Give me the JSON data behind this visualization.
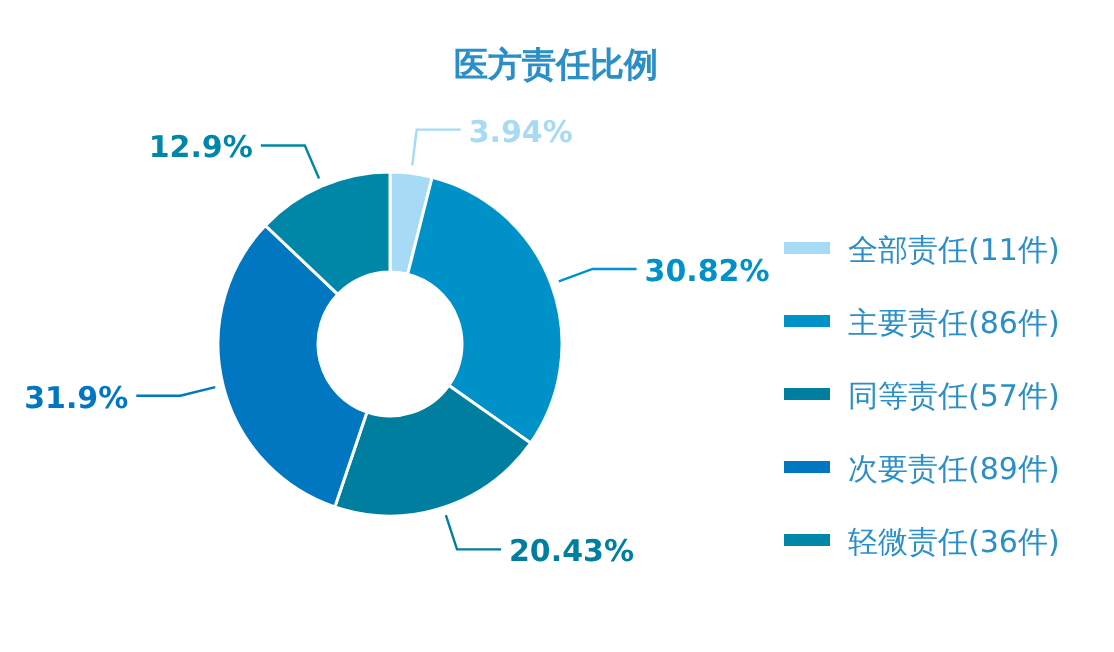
{
  "chart_data": {
    "type": "donut",
    "title": "医方责任比例",
    "categories": [
      "全部责任(11件)",
      "主要责任(86件)",
      "同等责任(57件)",
      "次要责任(89件)",
      "轻微责任(36件)"
    ],
    "values": [
      3.94,
      30.82,
      20.43,
      31.9,
      12.9
    ],
    "colors": [
      "#a6daf5",
      "#0091c8",
      "#007ea0",
      "#0077c0",
      "#0087a8"
    ],
    "value_labels": [
      "3.94%",
      "30.82%",
      "20.43%",
      "31.9%",
      "12.9%"
    ],
    "legend": "right"
  }
}
